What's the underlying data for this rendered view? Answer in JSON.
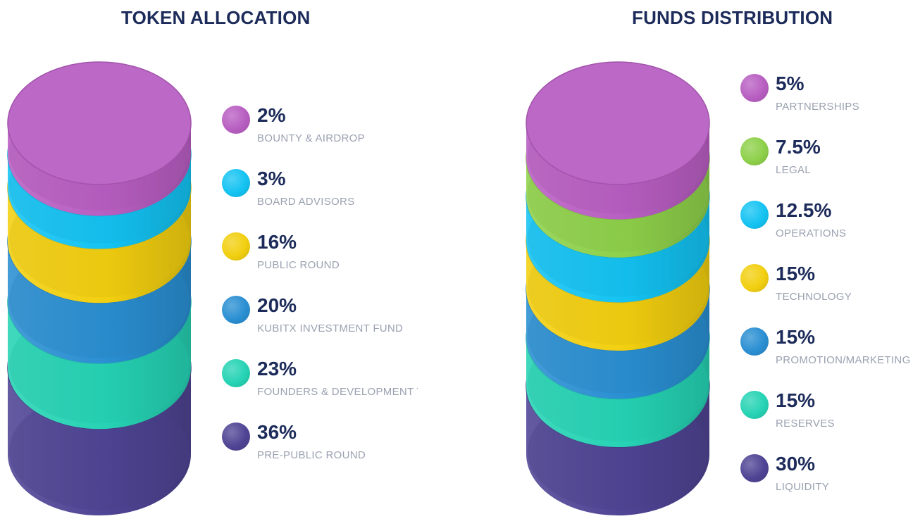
{
  "chart_data": [
    {
      "type": "stacked-cylinder",
      "title": "TOKEN ALLOCATION",
      "series": [
        {
          "label": "BOUNTY & AIRDROP",
          "value": 2,
          "value_label": "2%",
          "color": "#b85ec2"
        },
        {
          "label": "BOARD ADVISORS",
          "value": 3,
          "value_label": "3%",
          "color": "#14c3f2"
        },
        {
          "label": "PUBLIC ROUND",
          "value": 16,
          "value_label": "16%",
          "color": "#f2cf10"
        },
        {
          "label": "KUBITX INVESTMENT FUND",
          "value": 20,
          "value_label": "20%",
          "color": "#2a8fd2"
        },
        {
          "label": "FOUNDERS & DEVELOPMENT TEAM",
          "value": 23,
          "value_label": "23%",
          "color": "#26d3b4"
        },
        {
          "label": "PRE-PUBLIC ROUND",
          "value": 36,
          "value_label": "36%",
          "color": "#4f4494"
        }
      ]
    },
    {
      "type": "stacked-cylinder",
      "title": "FUNDS DISTRIBUTION",
      "series": [
        {
          "label": "PARTNERSHIPS",
          "value": 5,
          "value_label": "5%",
          "color": "#b85ec2"
        },
        {
          "label": "LEGAL",
          "value": 7.5,
          "value_label": "7.5%",
          "color": "#8ed04a"
        },
        {
          "label": "OPERATIONS",
          "value": 12.5,
          "value_label": "12.5%",
          "color": "#14c3f2"
        },
        {
          "label": "TECHNOLOGY",
          "value": 15,
          "value_label": "15%",
          "color": "#f2cf10"
        },
        {
          "label": "PROMOTION/MARKETING",
          "value": 15,
          "value_label": "15%",
          "color": "#2a8fd2"
        },
        {
          "label": "RESERVES",
          "value": 15,
          "value_label": "15%",
          "color": "#26d3b4"
        },
        {
          "label": "LIQUIDITY",
          "value": 30,
          "value_label": "30%",
          "color": "#4f4494"
        }
      ]
    }
  ]
}
